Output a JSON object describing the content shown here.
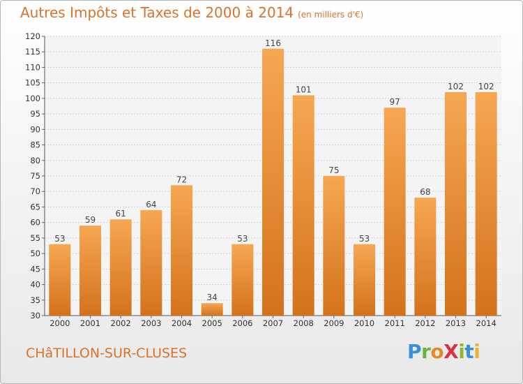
{
  "header": {
    "title": "Autres Impôts et Taxes de 2000 à 2014",
    "unit": "(en milliers d'€)"
  },
  "footer": {
    "place": "CHâTILLON-SUR-CLUSES",
    "logo_letters": [
      {
        "ch": "P",
        "color": "#3a8fd6"
      },
      {
        "ch": "r",
        "color": "#6ab43e"
      },
      {
        "ch": "o",
        "color": "#e58a2a"
      },
      {
        "ch": "X",
        "color": "#d6324a"
      },
      {
        "ch": "i",
        "color": "#8bb82e"
      },
      {
        "ch": "t",
        "color": "#3a8fd6"
      },
      {
        "ch": "i",
        "color": "#e5b62a"
      }
    ]
  },
  "colors": {
    "bar_light": "#f6a752",
    "bar_dark": "#d4721c",
    "title": "#d9732a",
    "grid": "#d5d5d5"
  },
  "chart_data": {
    "type": "bar",
    "title": "Autres Impôts et Taxes de 2000 à 2014",
    "subtitle": "(en milliers d'€)",
    "categories": [
      "2000",
      "2001",
      "2002",
      "2003",
      "2004",
      "2005",
      "2006",
      "2007",
      "2008",
      "2009",
      "2010",
      "2011",
      "2012",
      "2013",
      "2014"
    ],
    "values": [
      53,
      59,
      61,
      64,
      72,
      34,
      53,
      116,
      101,
      75,
      53,
      97,
      68,
      102,
      102
    ],
    "ylim": [
      30,
      120
    ],
    "yticks": [
      30,
      35,
      40,
      45,
      50,
      55,
      60,
      65,
      70,
      75,
      80,
      85,
      90,
      95,
      100,
      105,
      110,
      115,
      120
    ],
    "grid": true
  }
}
